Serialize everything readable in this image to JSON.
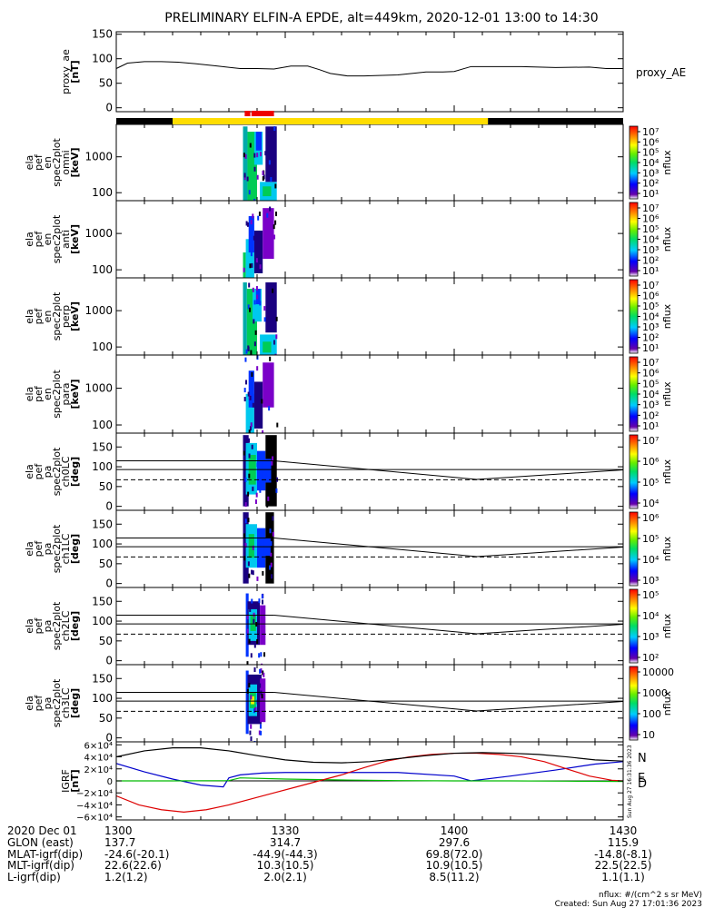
{
  "title": "PRELIMINARY ELFIN-A EPDE, alt=449km, 2020-12-01 13:00 to 14:30",
  "colors": {
    "bar_black": "#000000",
    "bar_yellow": "#ffdd00",
    "bar_red": "#ee0000",
    "igrf_n": "#0000cc",
    "igrf_e": "#00bb00",
    "igrf_d": "#dd0000",
    "igrf_total": "#000000"
  },
  "status_bar": {
    "segments": [
      {
        "from": "13:00",
        "to": "13:10",
        "color": "black"
      },
      {
        "from": "13:10",
        "to": "14:06",
        "color": "yellow"
      },
      {
        "from": "14:06",
        "to": "14:30",
        "color": "black"
      }
    ],
    "red_markers": [
      {
        "from": "13:22.8",
        "to": "13:23.8"
      },
      {
        "from": "13:24.0",
        "to": "13:28.0"
      }
    ]
  },
  "chart_data": [
    {
      "type": "line",
      "id": "proxy_ae",
      "ylabel": [
        "proxy_ae",
        "[nT]"
      ],
      "series_label": "proxy_AE",
      "ylim": [
        -8,
        155
      ],
      "yticks": [
        "150",
        "100",
        "50",
        "0"
      ],
      "ytick_values": [
        150,
        100,
        50,
        0
      ],
      "x_minutes": [
        0,
        2,
        5,
        8,
        11,
        14,
        18,
        22,
        25,
        28,
        31,
        34,
        36,
        38,
        41,
        44,
        50,
        55,
        58,
        60,
        63,
        66,
        72,
        78,
        84,
        87,
        90
      ],
      "y": [
        80,
        91,
        94,
        94,
        93,
        90,
        85,
        80,
        80,
        79,
        85,
        85,
        78,
        70,
        65,
        65,
        67,
        73,
        73,
        74,
        84,
        84,
        84,
        82,
        83,
        80,
        80
      ]
    },
    {
      "type": "heatmap",
      "id": "omni",
      "ylabel": [
        "ela",
        "pef",
        "en",
        "spec2plot",
        "omni",
        "[keV]"
      ],
      "yticks": [
        "1000",
        "100"
      ],
      "ytick_values": [
        1000,
        100
      ],
      "ylog": true,
      "ylim": [
        60,
        8000
      ],
      "colorbar": {
        "label": "nflux",
        "ticks": [
          "10⁷",
          "10⁶",
          "10⁵",
          "10⁴",
          "10³",
          "10²",
          "10¹"
        ]
      },
      "data_interval_minutes": [
        22.5,
        28.5
      ],
      "blocks": [
        {
          "t0": 22.5,
          "t1": 23.3,
          "e0": 60,
          "e1": 7000,
          "c": "teal"
        },
        {
          "t0": 23.3,
          "t1": 25.0,
          "e0": 60,
          "e1": 5000,
          "c": "green"
        },
        {
          "t0": 24.5,
          "t1": 26.0,
          "e0": 600,
          "e1": 5000,
          "c": "cyan"
        },
        {
          "t0": 24.8,
          "t1": 25.8,
          "e0": 1500,
          "e1": 5000,
          "c": "blue"
        },
        {
          "t0": 25.5,
          "t1": 28.5,
          "e0": 60,
          "e1": 200,
          "c": "cyan"
        },
        {
          "t0": 26.0,
          "t1": 27.5,
          "e0": 80,
          "e1": 150,
          "c": "green"
        },
        {
          "t0": 26.5,
          "t1": 28.5,
          "e0": 200,
          "e1": 7000,
          "c": "navy"
        }
      ]
    },
    {
      "type": "heatmap",
      "id": "anti",
      "ylabel": [
        "ela",
        "pef",
        "en",
        "spec2plot",
        "anti",
        "[keV]"
      ],
      "yticks": [
        "1000",
        "100"
      ],
      "ytick_values": [
        1000,
        100
      ],
      "ylog": true,
      "ylim": [
        60,
        8000
      ],
      "colorbar": {
        "label": "nflux",
        "ticks": [
          "10⁷",
          "10⁶",
          "10⁵",
          "10⁴",
          "10³",
          "10²",
          "10¹"
        ]
      },
      "data_interval_minutes": [
        22.5,
        28.5
      ],
      "blocks": [
        {
          "t0": 22.5,
          "t1": 23.0,
          "e0": 60,
          "e1": 300,
          "c": "green"
        },
        {
          "t0": 23.0,
          "t1": 24.5,
          "e0": 60,
          "e1": 700,
          "c": "cyan"
        },
        {
          "t0": 23.5,
          "t1": 24.5,
          "e0": 300,
          "e1": 3000,
          "c": "blue"
        },
        {
          "t0": 24.5,
          "t1": 26.0,
          "e0": 80,
          "e1": 1200,
          "c": "navy"
        },
        {
          "t0": 26.0,
          "t1": 28.0,
          "e0": 200,
          "e1": 5000,
          "c": "violet"
        }
      ]
    },
    {
      "type": "heatmap",
      "id": "perp",
      "ylabel": [
        "ela",
        "pef",
        "en",
        "spec2plot",
        "perp",
        "[keV]"
      ],
      "yticks": [
        "1000",
        "100"
      ],
      "ytick_values": [
        1000,
        100
      ],
      "ylog": true,
      "ylim": [
        60,
        8000
      ],
      "colorbar": {
        "label": "nflux",
        "ticks": [
          "10⁷",
          "10⁶",
          "10⁵",
          "10⁴",
          "10³",
          "10²",
          "10¹"
        ]
      },
      "data_interval_minutes": [
        22.5,
        28.5
      ],
      "blocks": [
        {
          "t0": 22.5,
          "t1": 23.2,
          "e0": 60,
          "e1": 6000,
          "c": "teal"
        },
        {
          "t0": 23.2,
          "t1": 25.0,
          "e0": 60,
          "e1": 4000,
          "c": "green"
        },
        {
          "t0": 24.2,
          "t1": 25.8,
          "e0": 500,
          "e1": 4000,
          "c": "cyan"
        },
        {
          "t0": 24.8,
          "t1": 25.6,
          "e0": 1500,
          "e1": 4000,
          "c": "blue"
        },
        {
          "t0": 25.5,
          "t1": 28.5,
          "e0": 60,
          "e1": 220,
          "c": "cyan"
        },
        {
          "t0": 26.0,
          "t1": 27.5,
          "e0": 70,
          "e1": 140,
          "c": "green"
        },
        {
          "t0": 26.5,
          "t1": 28.5,
          "e0": 250,
          "e1": 6000,
          "c": "navy"
        }
      ]
    },
    {
      "type": "heatmap",
      "id": "para",
      "ylabel": [
        "ela",
        "pef",
        "en",
        "spec2plot",
        "para",
        "[keV]"
      ],
      "yticks": [
        "1000",
        "100"
      ],
      "ytick_values": [
        1000,
        100
      ],
      "ylog": true,
      "ylim": [
        60,
        8000
      ],
      "colorbar": {
        "label": "nflux",
        "ticks": [
          "10⁷",
          "10⁶",
          "10⁵",
          "10⁴",
          "10³",
          "10²",
          "10¹"
        ]
      },
      "data_interval_minutes": [
        22.5,
        28.5
      ],
      "blocks": [
        {
          "t0": 23.0,
          "t1": 24.5,
          "e0": 60,
          "e1": 700,
          "c": "cyan"
        },
        {
          "t0": 23.5,
          "t1": 24.5,
          "e0": 300,
          "e1": 3000,
          "c": "blue"
        },
        {
          "t0": 24.5,
          "t1": 26.0,
          "e0": 80,
          "e1": 1500,
          "c": "navy"
        },
        {
          "t0": 26.0,
          "t1": 28.0,
          "e0": 300,
          "e1": 5000,
          "c": "violet"
        }
      ]
    },
    {
      "type": "heatmap",
      "id": "ch0LC",
      "ylabel": [
        "ela",
        "pef",
        "pa",
        "spec2plot",
        "ch0LC",
        "[deg]"
      ],
      "yticks": [
        "150",
        "100",
        "50",
        "0"
      ],
      "ytick_values": [
        150,
        100,
        50,
        0
      ],
      "ylim": [
        -10,
        185
      ],
      "colorbar": {
        "label": "nflux",
        "ticks": [
          "10⁷",
          "10⁶",
          "10⁵",
          "10⁴"
        ]
      },
      "data_interval_minutes": [
        22.5,
        28.5
      ],
      "blocks": [
        {
          "t0": 22.5,
          "t1": 23.5,
          "e0": 0,
          "e1": 180,
          "c": "navy"
        },
        {
          "t0": 23.0,
          "t1": 25.0,
          "e0": 30,
          "e1": 160,
          "c": "cyan"
        },
        {
          "t0": 23.5,
          "t1": 24.8,
          "e0": 55,
          "e1": 130,
          "c": "green"
        },
        {
          "t0": 25.0,
          "t1": 26.5,
          "e0": 40,
          "e1": 140,
          "c": "blue"
        },
        {
          "t0": 26.5,
          "t1": 28.5,
          "e0": 0,
          "e1": 180,
          "c": "black"
        },
        {
          "t0": 26.0,
          "t1": 27.5,
          "e0": 60,
          "e1": 120,
          "c": "blue"
        }
      ],
      "lines": {
        "upper": {
          "x_minutes": [
            28,
            64,
            90
          ],
          "y": [
            115,
            68,
            92
          ]
        },
        "lower": {
          "x_minutes": [
            0,
            90
          ],
          "y": [
            93,
            93
          ]
        },
        "dashed": {
          "x_minutes": [
            0,
            90
          ],
          "y": [
            67,
            67
          ]
        }
      }
    },
    {
      "type": "heatmap",
      "id": "ch1LC",
      "ylabel": [
        "ela",
        "pef",
        "pa",
        "spec2plot",
        "ch1LC",
        "[deg]"
      ],
      "yticks": [
        "150",
        "100",
        "50",
        "0"
      ],
      "ytick_values": [
        150,
        100,
        50,
        0
      ],
      "ylim": [
        -10,
        185
      ],
      "colorbar": {
        "label": "nflux",
        "ticks": [
          "10⁶",
          "10⁵",
          "10⁴",
          "10³"
        ]
      },
      "data_interval_minutes": [
        22.5,
        28.0
      ],
      "blocks": [
        {
          "t0": 22.5,
          "t1": 23.5,
          "e0": 0,
          "e1": 180,
          "c": "navy"
        },
        {
          "t0": 23.0,
          "t1": 25.0,
          "e0": 40,
          "e1": 150,
          "c": "cyan"
        },
        {
          "t0": 23.5,
          "t1": 24.5,
          "e0": 65,
          "e1": 125,
          "c": "green"
        },
        {
          "t0": 25.0,
          "t1": 26.5,
          "e0": 40,
          "e1": 140,
          "c": "blue"
        },
        {
          "t0": 26.5,
          "t1": 28.0,
          "e0": 0,
          "e1": 180,
          "c": "black"
        },
        {
          "t0": 26.2,
          "t1": 27.4,
          "e0": 70,
          "e1": 115,
          "c": "blue"
        }
      ],
      "lines": {
        "upper": {
          "x_minutes": [
            28,
            64,
            90
          ],
          "y": [
            115,
            68,
            92
          ]
        },
        "lower": {
          "x_minutes": [
            0,
            90
          ],
          "y": [
            93,
            93
          ]
        },
        "dashed": {
          "x_minutes": [
            0,
            90
          ],
          "y": [
            67,
            67
          ]
        }
      }
    },
    {
      "type": "heatmap",
      "id": "ch2LC",
      "ylabel": [
        "ela",
        "pef",
        "pa",
        "spec2plot",
        "ch2LC",
        "[deg]"
      ],
      "yticks": [
        "150",
        "100",
        "50",
        "0"
      ],
      "ytick_values": [
        150,
        100,
        50,
        0
      ],
      "ylim": [
        -10,
        185
      ],
      "colorbar": {
        "label": "nflux",
        "ticks": [
          "10⁵",
          "10⁴",
          "10³",
          "10²"
        ]
      },
      "data_interval_minutes": [
        23.0,
        26.5
      ],
      "blocks": [
        {
          "t0": 23.0,
          "t1": 23.5,
          "e0": 10,
          "e1": 170,
          "c": "blue"
        },
        {
          "t0": 23.3,
          "t1": 25.5,
          "e0": 40,
          "e1": 150,
          "c": "navy"
        },
        {
          "t0": 23.5,
          "t1": 25.0,
          "e0": 50,
          "e1": 130,
          "c": "cyan"
        },
        {
          "t0": 23.8,
          "t1": 24.8,
          "e0": 75,
          "e1": 115,
          "c": "green"
        },
        {
          "t0": 25.5,
          "t1": 26.5,
          "e0": 40,
          "e1": 140,
          "c": "violet"
        }
      ],
      "lines": {
        "upper": {
          "x_minutes": [
            28,
            64,
            90
          ],
          "y": [
            115,
            68,
            92
          ]
        },
        "lower": {
          "x_minutes": [
            0,
            90
          ],
          "y": [
            93,
            93
          ]
        },
        "dashed": {
          "x_minutes": [
            0,
            90
          ],
          "y": [
            67,
            67
          ]
        }
      }
    },
    {
      "type": "heatmap",
      "id": "ch3LC",
      "ylabel": [
        "ela",
        "pef",
        "pa",
        "spec2plot",
        "ch3LC",
        "[deg]"
      ],
      "yticks": [
        "150",
        "100",
        "50",
        "0"
      ],
      "ytick_values": [
        150,
        100,
        50,
        0
      ],
      "ylim": [
        -10,
        185
      ],
      "colorbar": {
        "label": "nflux",
        "ticks": [
          "10000",
          "1000",
          "100",
          "10"
        ]
      },
      "data_interval_minutes": [
        23.0,
        26.5
      ],
      "blocks": [
        {
          "t0": 23.0,
          "t1": 23.5,
          "e0": 10,
          "e1": 170,
          "c": "blue"
        },
        {
          "t0": 23.3,
          "t1": 25.8,
          "e0": 35,
          "e1": 160,
          "c": "navy"
        },
        {
          "t0": 23.5,
          "t1": 25.0,
          "e0": 55,
          "e1": 135,
          "c": "cyan"
        },
        {
          "t0": 23.7,
          "t1": 24.8,
          "e0": 75,
          "e1": 115,
          "c": "green"
        },
        {
          "t0": 23.9,
          "t1": 24.5,
          "e0": 85,
          "e1": 105,
          "c": "yellow"
        },
        {
          "t0": 25.5,
          "t1": 26.5,
          "e0": 40,
          "e1": 150,
          "c": "violet"
        }
      ],
      "lines": {
        "upper": {
          "x_minutes": [
            28,
            64,
            90
          ],
          "y": [
            115,
            68,
            92
          ]
        },
        "lower": {
          "x_minutes": [
            0,
            90
          ],
          "y": [
            93,
            93
          ]
        },
        "dashed": {
          "x_minutes": [
            0,
            90
          ],
          "y": [
            67,
            67
          ]
        }
      }
    },
    {
      "type": "line",
      "id": "igrf",
      "ylabel": [
        "IGRF",
        "[nT]"
      ],
      "ylim": [
        -65000,
        65000
      ],
      "yticks": [
        "6×10⁴",
        "4×10⁴",
        "2×10⁴",
        "0",
        "−2×10⁴",
        "−4×10⁴",
        "−6×10⁴"
      ],
      "ytick_values": [
        60000,
        40000,
        20000,
        0,
        -20000,
        -40000,
        -60000
      ],
      "side_text": "Sun Aug 27 16:31:36 2023",
      "series": [
        {
          "name": "N",
          "color": "blue",
          "x": [
            0,
            5,
            10,
            15,
            19,
            20,
            22,
            26,
            30,
            40,
            50,
            60,
            63,
            70,
            78,
            85,
            90
          ],
          "y": [
            29000,
            15000,
            3000,
            -7000,
            -10000,
            5000,
            10000,
            13000,
            14000,
            14000,
            14000,
            8000,
            0,
            8000,
            18000,
            28000,
            32000
          ]
        },
        {
          "name": "E",
          "color": "green",
          "x": [
            0,
            10,
            20,
            22,
            30,
            40,
            50,
            60,
            70,
            80,
            90
          ],
          "y": [
            0,
            0,
            500,
            5000,
            3000,
            1500,
            500,
            0,
            0,
            -500,
            -1000
          ]
        },
        {
          "name": "D",
          "color": "red",
          "x": [
            0,
            4,
            8,
            12,
            16,
            20,
            24,
            28,
            32,
            36,
            40,
            44,
            48,
            52,
            56,
            60,
            64,
            68,
            72,
            76,
            80,
            84,
            88,
            90
          ],
          "y": [
            -25000,
            -40000,
            -48000,
            -52000,
            -48000,
            -40000,
            -30000,
            -20000,
            -10000,
            0,
            10000,
            22000,
            33000,
            40000,
            44000,
            46000,
            46000,
            44000,
            40000,
            32000,
            20000,
            8000,
            1000,
            0
          ]
        },
        {
          "name": "",
          "color": "black",
          "x": [
            0,
            5,
            10,
            15,
            20,
            25,
            30,
            35,
            40,
            45,
            50,
            55,
            60,
            65,
            70,
            75,
            80,
            85,
            90
          ],
          "y": [
            40000,
            50000,
            55000,
            55000,
            50000,
            42000,
            35000,
            31000,
            30000,
            32000,
            37000,
            42000,
            46000,
            47000,
            46000,
            44000,
            40000,
            35000,
            33000
          ]
        }
      ]
    }
  ],
  "time_axis": {
    "ticks": [
      {
        "minutes": 0,
        "label": "1300"
      },
      {
        "minutes": 30,
        "label": "1330"
      },
      {
        "minutes": 60,
        "label": "1400"
      },
      {
        "minutes": 90,
        "label": "1430"
      }
    ]
  },
  "footer_rows": [
    {
      "label": "2020 Dec 01",
      "values": [
        "1300",
        "1330",
        "1400",
        "1430"
      ]
    },
    {
      "label": "GLON (east)",
      "values": [
        "137.7",
        "314.7",
        "297.6",
        "115.9"
      ]
    },
    {
      "label": "MLAT-igrf(dip)",
      "values": [
        "-24.6(-20.1)",
        "-44.9(-44.3)",
        "69.8(72.0)",
        "-14.8(-8.1)"
      ]
    },
    {
      "label": "MLT-igrf(dip)",
      "values": [
        "22.6(22.6)",
        "10.3(10.5)",
        "10.9(10.5)",
        "22.5(22.5)"
      ]
    },
    {
      "label": "L-igrf(dip)",
      "values": [
        "1.2(1.2)",
        "2.0(2.1)",
        "8.5(11.2)",
        "1.1(1.1)"
      ]
    }
  ],
  "footer_right": {
    "units": "nflux: #/(cm^2 s sr MeV)",
    "created": "Created: Sun Aug 27 17:01:36 2023"
  }
}
